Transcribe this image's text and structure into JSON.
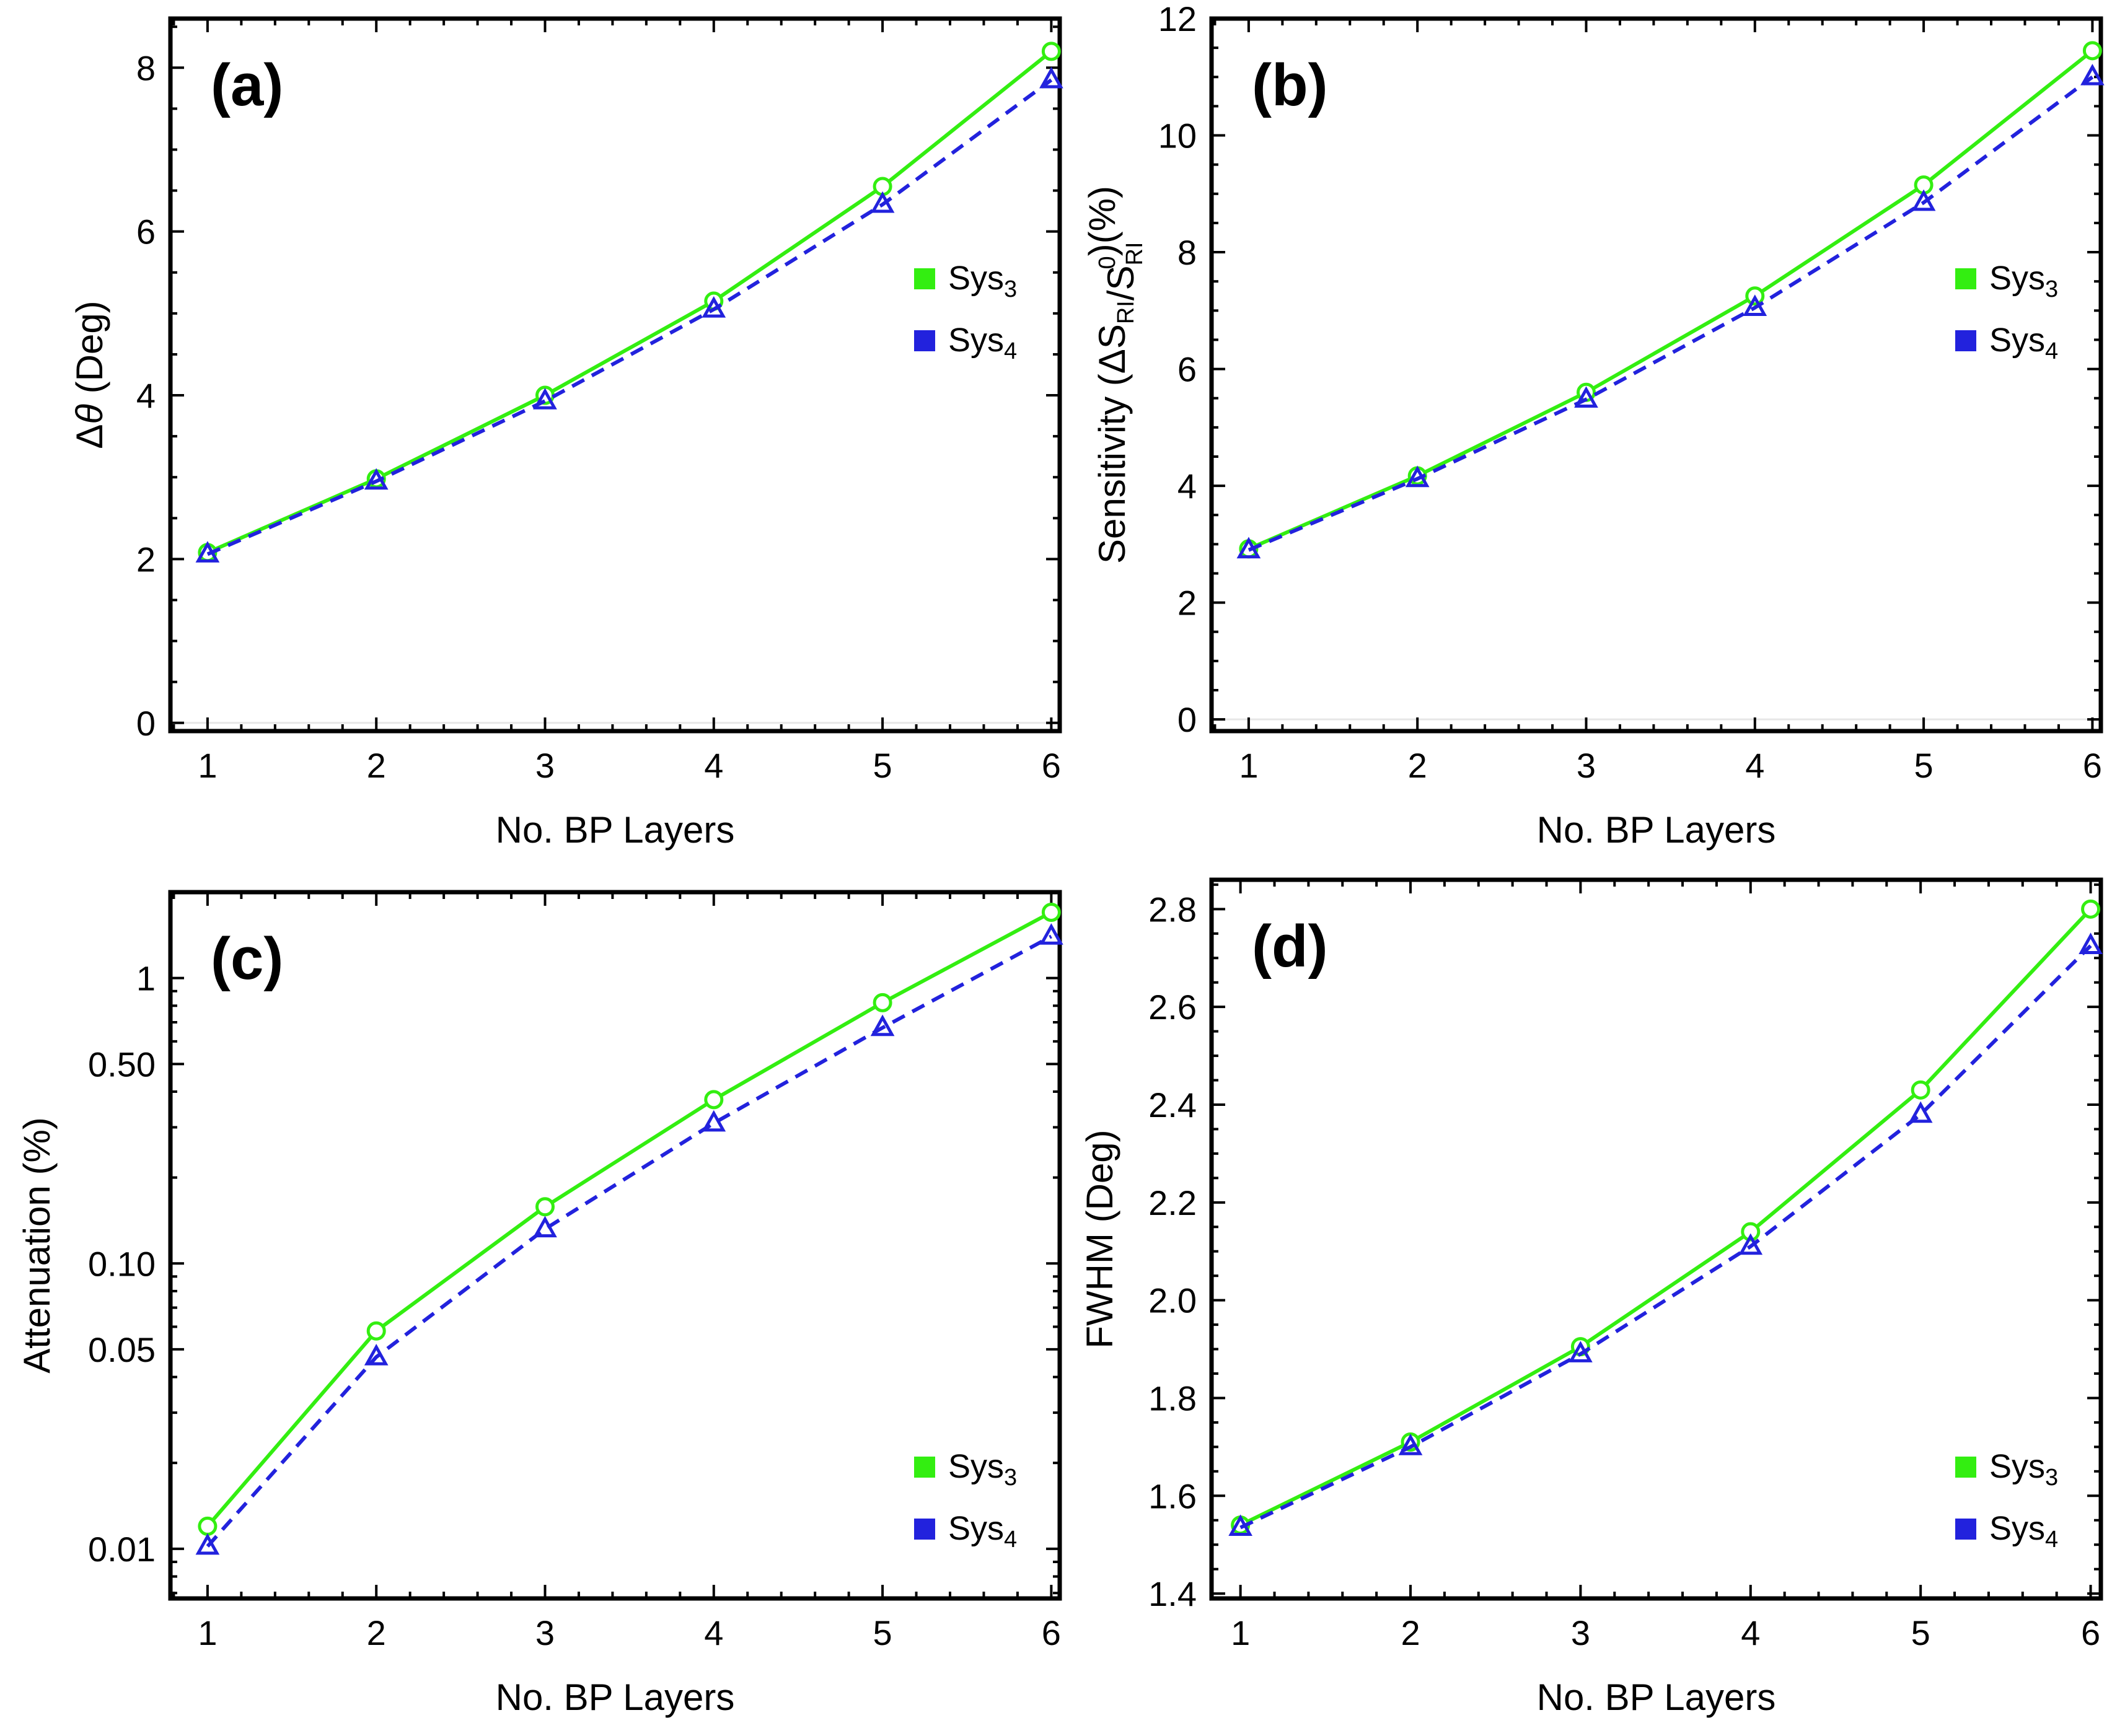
{
  "colors": {
    "sys3": "#33ee11",
    "sys4": "#2222dd"
  },
  "legend_symbol": "filled-square-icon",
  "chart_data": [
    {
      "panel": "(a)",
      "type": "line",
      "xlabel": "No. BP Layers",
      "ylabel_prefix": "Δ",
      "ylabel_symbol": "θ",
      "ylabel_suffix": " (Deg)",
      "x": [
        1,
        2,
        3,
        4,
        5,
        6
      ],
      "xlim": [
        0.78,
        6.05
      ],
      "ylim": [
        -0.1,
        8.6
      ],
      "yscale": "linear",
      "yticks": [
        0,
        2,
        4,
        6,
        8
      ],
      "ytick_labels": [
        "0",
        "2",
        "4",
        "6",
        "8"
      ],
      "legend_position": "right-middle",
      "series": [
        {
          "name": "Sys",
          "sub": "3",
          "marker": "circle",
          "line": "solid",
          "values": [
            2.08,
            2.98,
            4.0,
            5.15,
            6.55,
            8.2
          ]
        },
        {
          "name": "Sys",
          "sub": "4",
          "marker": "triangle",
          "line": "dashed",
          "values": [
            2.06,
            2.95,
            3.93,
            5.05,
            6.33,
            7.85
          ]
        }
      ]
    },
    {
      "panel": "(b)",
      "type": "line",
      "xlabel": "No. BP Layers",
      "ylabel_parts": [
        {
          "t": "Sensitivity (ΔS"
        },
        {
          "t": "RI",
          "sub": true
        },
        {
          "t": "/S"
        },
        {
          "t": "RI",
          "sub": true,
          "sup": "0"
        },
        {
          "t": ")(%)"
        }
      ],
      "x": [
        1,
        2,
        3,
        4,
        5,
        6
      ],
      "xlim": [
        0.78,
        6.05
      ],
      "ylim": [
        -0.2,
        12.0
      ],
      "yscale": "linear",
      "yticks": [
        0,
        2,
        4,
        6,
        8,
        10,
        12
      ],
      "ytick_labels": [
        "0",
        "2",
        "4",
        "6",
        "8",
        "10",
        "12"
      ],
      "legend_position": "right-middle",
      "series": [
        {
          "name": "Sys",
          "sub": "3",
          "marker": "circle",
          "line": "solid",
          "values": [
            2.92,
            4.17,
            5.6,
            7.25,
            9.15,
            11.45
          ]
        },
        {
          "name": "Sys",
          "sub": "4",
          "marker": "triangle",
          "line": "dashed",
          "values": [
            2.9,
            4.12,
            5.48,
            7.05,
            8.85,
            11.0
          ]
        }
      ]
    },
    {
      "panel": "(c)",
      "type": "line",
      "xlabel": "No. BP Layers",
      "ylabel": "Attenuation (%)",
      "x": [
        1,
        2,
        3,
        4,
        5,
        6
      ],
      "xlim": [
        0.78,
        6.05
      ],
      "ylim": [
        0.0067,
        2.0
      ],
      "yscale": "log",
      "yticks": [
        0.01,
        0.05,
        0.1,
        0.5,
        1
      ],
      "ytick_labels": [
        "0.01",
        "0.05",
        "0.10",
        "0.50",
        "1"
      ],
      "legend_position": "bottom-right",
      "series": [
        {
          "name": "Sys",
          "sub": "3",
          "marker": "circle",
          "line": "solid",
          "values": [
            0.012,
            0.058,
            0.158,
            0.375,
            0.82,
            1.7
          ]
        },
        {
          "name": "Sys",
          "sub": "4",
          "marker": "triangle",
          "line": "dashed",
          "values": [
            0.0102,
            0.047,
            0.132,
            0.31,
            0.67,
            1.4
          ]
        }
      ]
    },
    {
      "panel": "(d)",
      "type": "line",
      "xlabel": "No. BP Layers",
      "ylabel": "FWHM (Deg)",
      "x": [
        1,
        2,
        3,
        4,
        5,
        6
      ],
      "xlim": [
        0.83,
        6.06
      ],
      "ylim": [
        1.39,
        2.86
      ],
      "yscale": "linear",
      "yticks": [
        1.4,
        1.6,
        1.8,
        2.0,
        2.2,
        2.4,
        2.6,
        2.8
      ],
      "ytick_labels": [
        "1.4",
        "1.6",
        "1.8",
        "2.0",
        "2.2",
        "2.4",
        "2.6",
        "2.8"
      ],
      "legend_position": "bottom-right",
      "series": [
        {
          "name": "Sys",
          "sub": "3",
          "marker": "circle",
          "line": "solid",
          "values": [
            1.54,
            1.71,
            1.905,
            2.14,
            2.43,
            2.8
          ]
        },
        {
          "name": "Sys",
          "sub": "4",
          "marker": "triangle",
          "line": "dashed",
          "values": [
            1.535,
            1.7,
            1.89,
            2.11,
            2.38,
            2.725
          ]
        }
      ]
    }
  ]
}
